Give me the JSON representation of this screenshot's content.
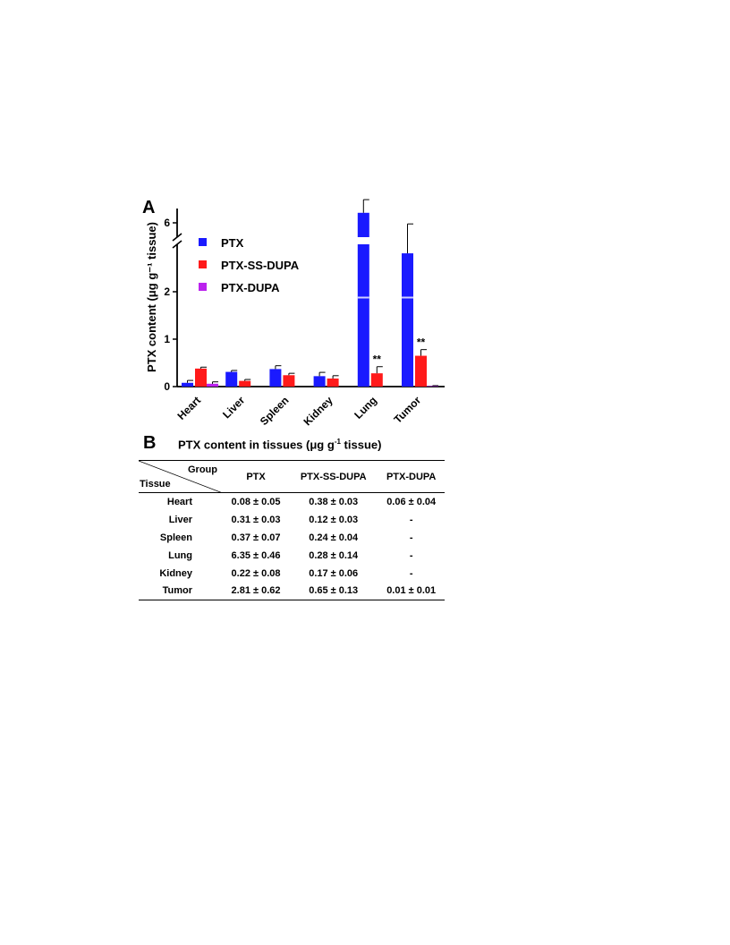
{
  "panels": {
    "a": "A",
    "b": "B"
  },
  "chart_data": {
    "type": "bar",
    "ylabel": "PTX content (μg g⁻¹ tissue)",
    "categories": [
      "Heart",
      "Liver",
      "Spleen",
      "Kidney",
      "Lung",
      "Tumor"
    ],
    "series": [
      {
        "name": "PTX",
        "color": "#1a1aff",
        "values": [
          0.08,
          0.31,
          0.37,
          0.22,
          6.35,
          2.81
        ],
        "errors": [
          0.05,
          0.03,
          0.07,
          0.08,
          0.46,
          0.62
        ]
      },
      {
        "name": "PTX-SS-DUPA",
        "color": "#ff1a1a",
        "values": [
          0.38,
          0.12,
          0.24,
          0.17,
          0.28,
          0.65
        ],
        "errors": [
          0.03,
          0.03,
          0.04,
          0.06,
          0.14,
          0.13
        ]
      },
      {
        "name": "PTX-DUPA",
        "color": "#bb22ee",
        "values": [
          0.06,
          0,
          0,
          0,
          0,
          0.01
        ],
        "errors": [
          0.04,
          0,
          0,
          0,
          0,
          0.01
        ]
      }
    ],
    "y_axis_break": {
      "lower": [
        0,
        3
      ],
      "upper": [
        5.5,
        6.5
      ]
    },
    "yticks_lower": [
      0,
      1,
      2
    ],
    "yticks_upper": [
      6
    ],
    "annotations": [
      {
        "category": "Lung",
        "series": "PTX-SS-DUPA",
        "text": "**"
      },
      {
        "category": "Tumor",
        "series": "PTX-SS-DUPA",
        "text": "**"
      }
    ],
    "legend_position": "top-left"
  },
  "table": {
    "title": "PTX content in tissues (μg g",
    "title_sup": "-1",
    "title_end": " tissue)",
    "corner_group": "Group",
    "corner_tissue": "Tissue",
    "columns": [
      "PTX",
      "PTX-SS-DUPA",
      "PTX-DUPA"
    ],
    "rows": [
      {
        "tissue": "Heart",
        "values": [
          "0.08 ± 0.05",
          "0.38 ± 0.03",
          "0.06 ± 0.04"
        ]
      },
      {
        "tissue": "Liver",
        "values": [
          "0.31 ± 0.03",
          "0.12 ± 0.03",
          "-"
        ]
      },
      {
        "tissue": "Spleen",
        "values": [
          "0.37 ± 0.07",
          "0.24 ± 0.04",
          "-"
        ]
      },
      {
        "tissue": "Lung",
        "values": [
          "6.35 ± 0.46",
          "0.28 ± 0.14",
          "-"
        ]
      },
      {
        "tissue": "Kidney",
        "values": [
          "0.22 ± 0.08",
          "0.17 ± 0.06",
          "-"
        ]
      },
      {
        "tissue": "Tumor",
        "values": [
          "2.81 ± 0.62",
          "0.65 ± 0.13",
          "0.01 ± 0.01"
        ]
      }
    ]
  }
}
